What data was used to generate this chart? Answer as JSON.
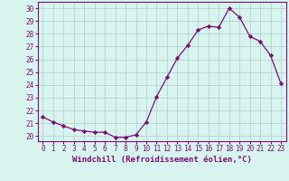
{
  "x": [
    0,
    1,
    2,
    3,
    4,
    5,
    6,
    7,
    8,
    9,
    10,
    11,
    12,
    13,
    14,
    15,
    16,
    17,
    18,
    19,
    20,
    21,
    22,
    23
  ],
  "y": [
    21.5,
    21.1,
    20.8,
    20.5,
    20.4,
    20.3,
    20.3,
    19.9,
    19.9,
    20.1,
    21.1,
    23.1,
    24.6,
    26.1,
    27.1,
    28.3,
    28.6,
    28.5,
    30.0,
    29.3,
    27.8,
    27.4,
    26.3,
    24.1
  ],
  "line_color": "#7B0C7B",
  "marker": "D",
  "marker_size": 2.2,
  "bg_color": "#d7f4ef",
  "grid_color": "#b0cec9",
  "xlabel": "Windchill (Refroidissement éolien,°C)",
  "xlabel_color": "#7B0C7B",
  "ylabel_ticks": [
    20,
    21,
    22,
    23,
    24,
    25,
    26,
    27,
    28,
    29,
    30
  ],
  "ylim": [
    19.6,
    30.5
  ],
  "xlim": [
    -0.5,
    23.5
  ],
  "tick_color": "#7B0C7B",
  "spine_color": "#7B0C7B",
  "tick_fontsize": 5.5,
  "xlabel_fontsize": 6.5
}
